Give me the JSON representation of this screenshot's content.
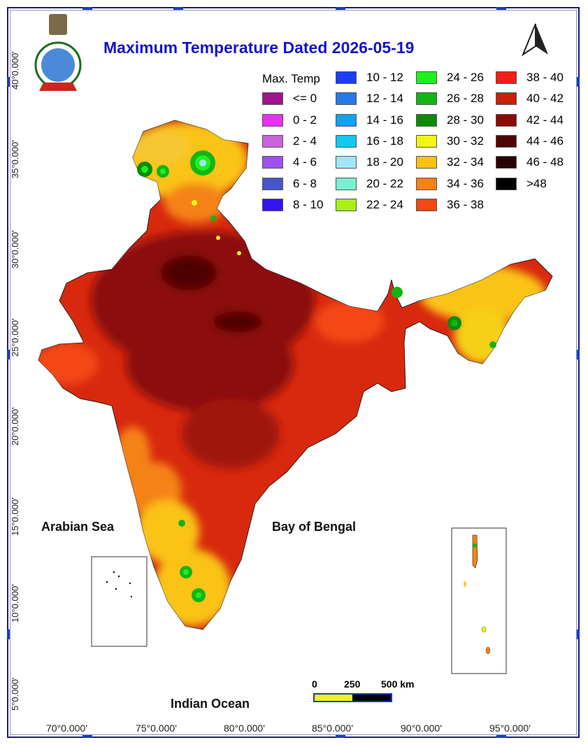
{
  "map": {
    "title": "Maximum Temperature Dated 2026-05-19",
    "legend_title": "Max. Temp",
    "legend": [
      {
        "label": "<= 0",
        "color": "#a0148c"
      },
      {
        "label": "0 - 2",
        "color": "#e632f0"
      },
      {
        "label": "2 - 4",
        "color": "#c864dc"
      },
      {
        "label": "4 - 6",
        "color": "#a050f0"
      },
      {
        "label": "6 - 8",
        "color": "#4656c8"
      },
      {
        "label": "8 - 10",
        "color": "#3214f0"
      },
      {
        "label": "10 - 12",
        "color": "#1e3cf0"
      },
      {
        "label": "12 - 14",
        "color": "#2878e6"
      },
      {
        "label": "14 - 16",
        "color": "#14a0f0"
      },
      {
        "label": "16 - 18",
        "color": "#14c8f0"
      },
      {
        "label": "18 - 20",
        "color": "#a0e6fa"
      },
      {
        "label": "20 - 22",
        "color": "#78f0d2"
      },
      {
        "label": "22 - 24",
        "color": "#aaf014"
      },
      {
        "label": "24 - 26",
        "color": "#1ef01e"
      },
      {
        "label": "26 - 28",
        "color": "#14b414"
      },
      {
        "label": "28 - 30",
        "color": "#0a8c0a"
      },
      {
        "label": "30 - 32",
        "color": "#f5f514"
      },
      {
        "label": "32 - 34",
        "color": "#fac314"
      },
      {
        "label": "34 - 36",
        "color": "#f58214"
      },
      {
        "label": "36 - 38",
        "color": "#f54614"
      },
      {
        "label": "38 - 40",
        "color": "#f01e14"
      },
      {
        "label": "40 - 42",
        "color": "#c8200a"
      },
      {
        "label": "42 - 44",
        "color": "#8c0a0a"
      },
      {
        "label": "44 - 46",
        "color": "#500505"
      },
      {
        "label": "46 - 48",
        "color": "#280505"
      },
      {
        "label": ">48",
        "color": "#000000"
      }
    ],
    "latitudes": [
      "40°0.000'",
      "35°0.000'",
      "30°0.000'",
      "25°0.000'",
      "20°0.000'",
      "15°0.000'",
      "10°0.000'",
      "5°0.000'"
    ],
    "longitudes": [
      "70°0.000'",
      "75°0.000'",
      "80°0.000'",
      "85°0.000'",
      "90°0.000'",
      "95°0.000'"
    ],
    "seas": {
      "arabian": "Arabian Sea",
      "bengal": "Bay of Bengal",
      "indian": "Indian Ocean"
    },
    "scale": {
      "zero": "0",
      "mid": "250",
      "end": "500 km"
    }
  }
}
